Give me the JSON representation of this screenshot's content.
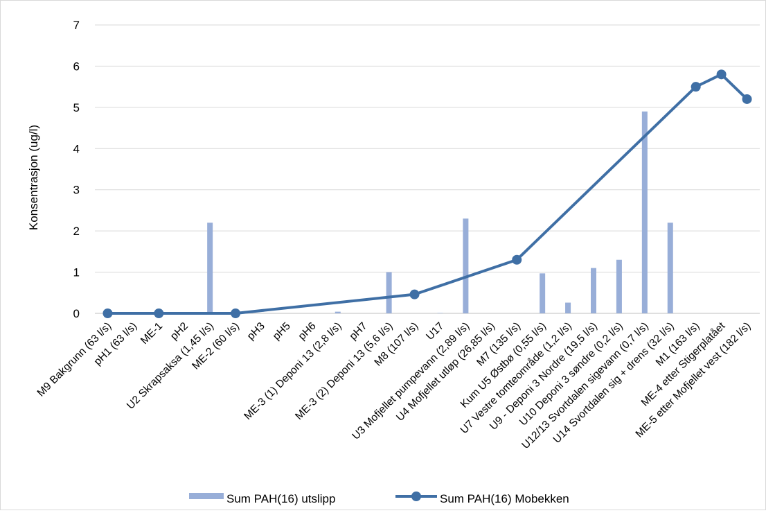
{
  "chart_data": {
    "type": "bar",
    "categories": [
      "M9 Bakgrunn (63 l/s)",
      "pH1 (63 l/s)",
      "ME-1",
      "pH2",
      "U2 Skrapsaksa (1,45 l/s)",
      "ME-2 (60 l/s)",
      "pH3",
      "pH5",
      "pH6",
      "ME-3 (1) Deponi 13 (2,8 l/s)",
      "pH7",
      "ME-3 (2) Deponi 13 (5,6 l/s)",
      "M8 (107 l/s)",
      "U17",
      "U3 Mofjellet pumpevann (2,89 l/s)",
      "U4 Mofjellet utløp (26,85 l/s)",
      "M7 (135 l/s)",
      "Kum U5 Østbø (0,55 l/s)",
      "U7 Vestre tomteområde (1,2 l/s)",
      "U9 - Deponi 3 Nordre (19,5 l/s)",
      "U10 Deponi 3 søndre (0,2 l/s)",
      "U12/13 Svortdalen sigevann (0,7 l/s)",
      "U14 Svortdalen sig + drens (32 l/s)",
      "M1 (163 l/s)",
      "ME-4 etter Stigerplatået",
      "ME-5 etter Mofjellet vest (182 l/s)"
    ],
    "series": [
      {
        "name": "Sum PAH(16) utslipp",
        "kind": "bar",
        "color": "#98aed8",
        "values": [
          null,
          null,
          null,
          null,
          2.2,
          null,
          null,
          null,
          null,
          0.04,
          null,
          1.0,
          null,
          0.01,
          2.3,
          null,
          null,
          0.97,
          0.26,
          1.1,
          1.3,
          4.9,
          2.2,
          null,
          null,
          null
        ]
      },
      {
        "name": "Sum PAH(16) Mobekken",
        "kind": "line",
        "color": "#3f6fa5",
        "values": [
          0,
          null,
          0,
          null,
          null,
          0,
          null,
          null,
          null,
          null,
          null,
          null,
          0.46,
          null,
          null,
          null,
          1.3,
          null,
          null,
          null,
          null,
          null,
          null,
          5.5,
          5.8,
          5.2
        ]
      }
    ],
    "title": "",
    "xlabel": "",
    "ylabel": "Konsentrasjon  (ug/l)",
    "ylim": [
      0,
      7
    ],
    "yticks": [
      0,
      1,
      2,
      3,
      4,
      5,
      6,
      7
    ],
    "grid": true,
    "legend": "bottom"
  }
}
